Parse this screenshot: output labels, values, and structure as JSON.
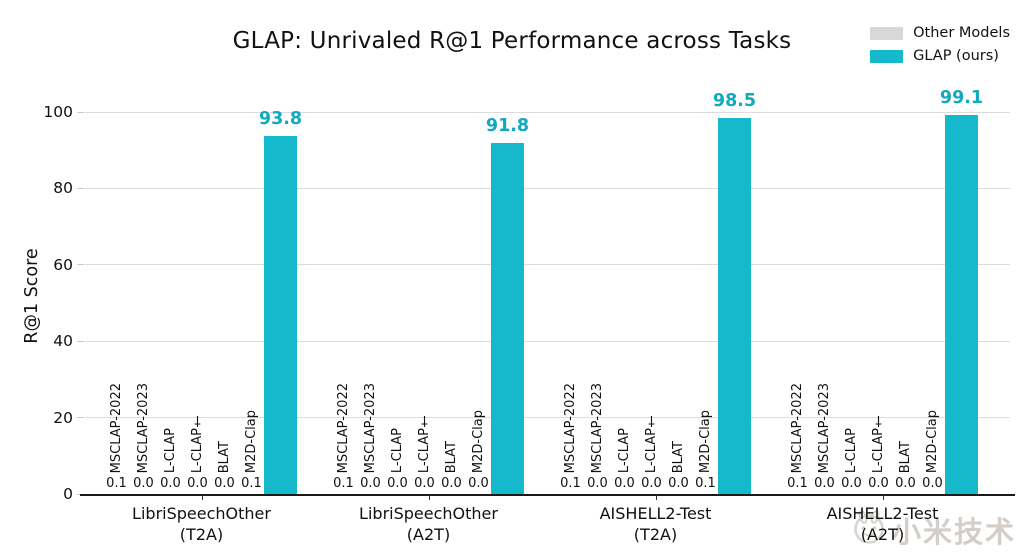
{
  "title": "GLAP: Unrivaled R@1 Performance across Tasks",
  "watermark": {
    "text": "小米技术",
    "logo_icon": "rabbit-badge-icon"
  },
  "colors": {
    "glap_bar": "#16b9cb",
    "glap_value_text": "#10a9c0",
    "other_bar": "#d8d8d8",
    "gridline": "#dcdcdc",
    "axis": "#1a1a1a"
  },
  "chart_data": {
    "type": "bar",
    "title": "GLAP: Unrivaled R@1 Performance across Tasks",
    "xlabel": "",
    "ylabel": "R@1 Score",
    "ylim": [
      0,
      100
    ],
    "yticks": [
      0,
      20,
      40,
      60,
      80,
      100
    ],
    "grid": "horizontal",
    "legend": {
      "position": "top-right",
      "entries": [
        {
          "label": "Other Models",
          "color": "#d8d8d8"
        },
        {
          "label": "GLAP (ours)",
          "color": "#16b9cb"
        }
      ]
    },
    "categories": [
      {
        "line1": "LibriSpeechOther",
        "line2": "(T2A)"
      },
      {
        "line1": "LibriSpeechOther",
        "line2": "(A2T)"
      },
      {
        "line1": "AISHELL2-Test",
        "line2": "(T2A)"
      },
      {
        "line1": "AISHELL2-Test",
        "line2": "(A2T)"
      }
    ],
    "other_models_series": [
      {
        "name": "MSCLAP-2022",
        "values": [
          0.1,
          0.1,
          0.1,
          0.1
        ]
      },
      {
        "name": "MSCLAP-2023",
        "values": [
          0.0,
          0.0,
          0.0,
          0.0
        ]
      },
      {
        "name": "L-CLAP",
        "values": [
          0.0,
          0.0,
          0.0,
          0.0
        ]
      },
      {
        "name": "L-CLAP†",
        "values": [
          0.0,
          0.0,
          0.0,
          0.0
        ]
      },
      {
        "name": "BLAT",
        "values": [
          0.0,
          0.0,
          0.0,
          0.0
        ]
      },
      {
        "name": "M2D-Clap",
        "values": [
          0.1,
          0.0,
          0.1,
          0.0
        ]
      }
    ],
    "glap_series": {
      "name": "GLAP (ours)",
      "values": [
        93.8,
        91.8,
        98.5,
        99.1
      ],
      "color": "#16b9cb",
      "value_text_color": "#10a9c0"
    }
  }
}
